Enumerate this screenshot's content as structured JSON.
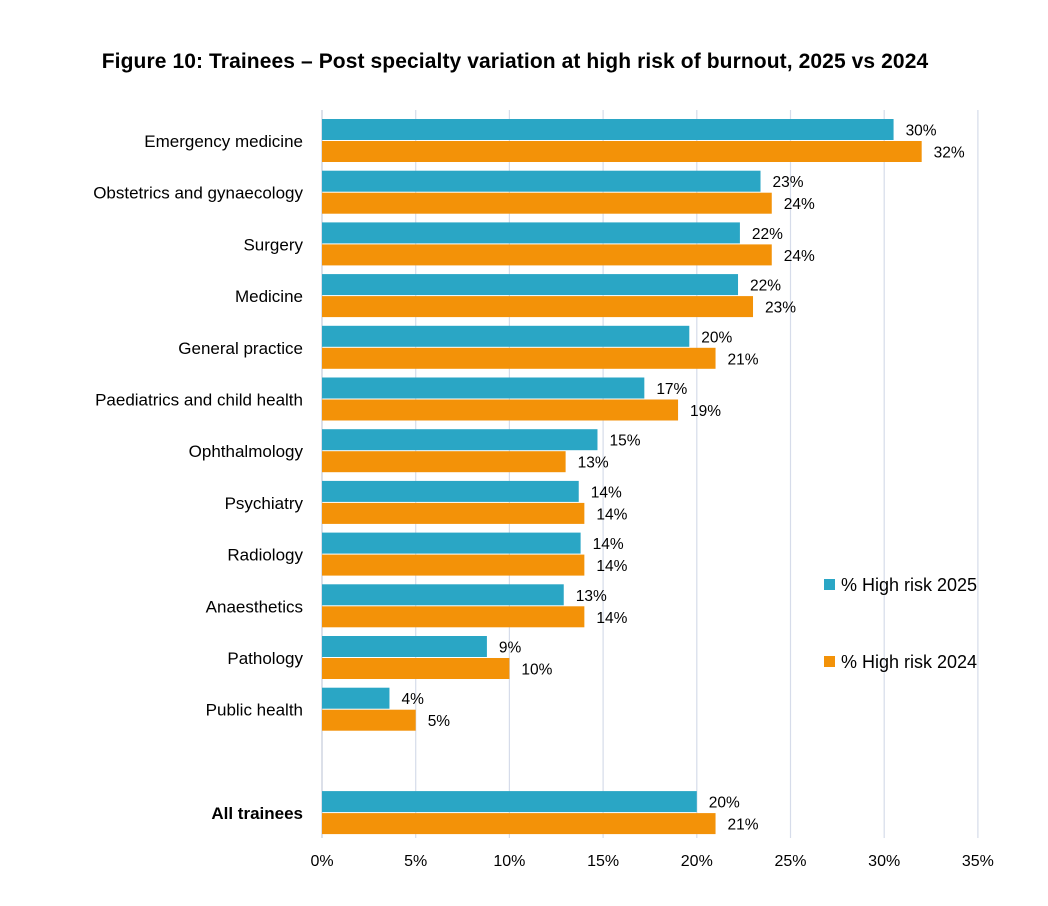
{
  "chart_data": {
    "type": "bar",
    "orientation": "horizontal",
    "title": "Figure 10: Trainees – Post specialty variation at high risk of burnout, 2025 vs 2024",
    "xlabel": "",
    "ylabel": "",
    "xlim": [
      0,
      35
    ],
    "grid": true,
    "legend_position": "right",
    "categories": [
      "Emergency medicine",
      "Obstetrics and gynaecology",
      "Surgery",
      "Medicine",
      "General practice",
      "Paediatrics and child health",
      "Ophthalmology",
      "Psychiatry",
      "Radiology",
      "Anaesthetics",
      "Pathology",
      "Public health",
      "All trainees"
    ],
    "emphasized_category": "All trainees",
    "series": [
      {
        "name": "% High risk 2025",
        "color": "#2aa6c5",
        "values": [
          30.5,
          23.4,
          22.3,
          22.2,
          19.6,
          17.2,
          14.7,
          13.7,
          13.8,
          12.9,
          8.8,
          3.6,
          20.0
        ],
        "labels": [
          "30%",
          "23%",
          "22%",
          "22%",
          "20%",
          "17%",
          "15%",
          "14%",
          "14%",
          "13%",
          "9%",
          "4%",
          "20%"
        ]
      },
      {
        "name": "% High risk 2024",
        "color": "#f39208",
        "values": [
          32.0,
          24.0,
          24.0,
          23.0,
          21.0,
          19.0,
          13.0,
          14.0,
          14.0,
          14.0,
          10.0,
          5.0,
          21.0
        ],
        "labels": [
          "32%",
          "24%",
          "24%",
          "23%",
          "21%",
          "19%",
          "13%",
          "14%",
          "14%",
          "14%",
          "10%",
          "5%",
          "21%"
        ]
      }
    ],
    "x_ticks": [
      "0%",
      "5%",
      "10%",
      "15%",
      "20%",
      "25%",
      "30%",
      "35%"
    ]
  }
}
